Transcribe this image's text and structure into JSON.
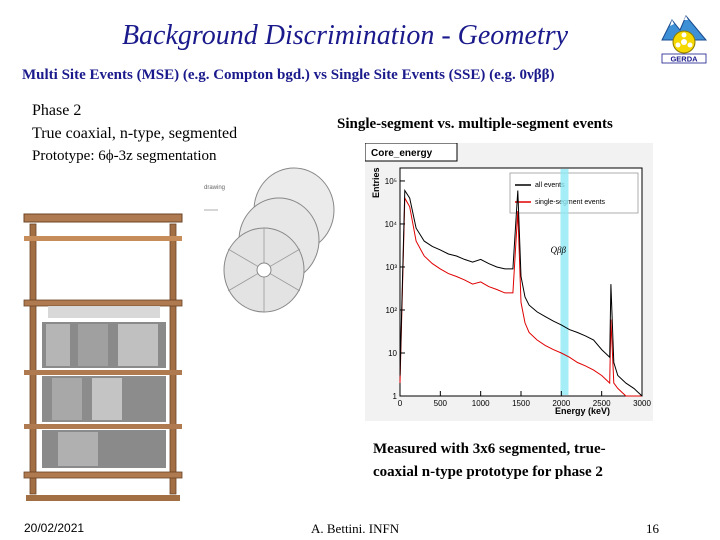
{
  "slide": {
    "title": "Background Discrimination - Geometry",
    "subtitle": "Multi Site Events (MSE) (e.g. Compton bgd.) vs Single Site Events (SSE) (e.g. 0νββ)",
    "left_text": {
      "line1": "Phase 2",
      "line2": "True coaxial, n-type, segmented",
      "line3": "Prototype: 6ϕ-3z segmentation"
    },
    "figure_title": "Single-segment vs. multiple-segment events",
    "caption_line1": "Measured with 3x6 segmented, true-",
    "caption_line2": "coaxial n-type prototype for phase 2",
    "footer_date": "20/02/2021",
    "footer_author": "A. Bettini. INFN",
    "page_number": "16",
    "logo_text": "GERDA",
    "drawing_label": "drawing"
  },
  "chart_data": {
    "type": "line",
    "title": "Core_energy",
    "xlabel": "Energy (keV)",
    "ylabel": "Entries",
    "xlim": [
      0,
      3000
    ],
    "ylog": true,
    "ylim": [
      1,
      200000
    ],
    "x_ticks": [
      "0",
      "500",
      "1000",
      "1500",
      "2000",
      "2500",
      "3000"
    ],
    "y_ticks": [
      "1",
      "10",
      "10²",
      "10³",
      "10⁴",
      "10⁵"
    ],
    "legend": [
      "all events",
      "single-segment events"
    ],
    "legend_position": "top-right",
    "annotation": "Qββ",
    "annotation_x": 2039,
    "series": [
      {
        "name": "all events",
        "color": "#000000",
        "x": [
          0,
          60,
          120,
          200,
          300,
          400,
          500,
          600,
          700,
          800,
          900,
          1000,
          1100,
          1200,
          1300,
          1400,
          1460,
          1500,
          1550,
          1600,
          1700,
          1800,
          1900,
          2000,
          2100,
          2200,
          2300,
          2400,
          2500,
          2600,
          2615,
          2650,
          2700,
          2800,
          2900,
          3000
        ],
        "y": [
          3,
          60000,
          40000,
          8000,
          4000,
          3000,
          2500,
          2000,
          1800,
          1500,
          1300,
          1500,
          1200,
          1000,
          900,
          900,
          60000,
          600,
          200,
          130,
          90,
          70,
          55,
          45,
          35,
          30,
          25,
          20,
          12,
          8,
          400,
          6,
          3,
          2,
          1.5,
          1
        ]
      },
      {
        "name": "single-segment events",
        "color": "#e00000",
        "x": [
          0,
          60,
          120,
          200,
          300,
          400,
          500,
          600,
          700,
          800,
          900,
          1000,
          1100,
          1200,
          1300,
          1400,
          1460,
          1500,
          1550,
          1600,
          1700,
          1800,
          1900,
          2000,
          2100,
          2200,
          2300,
          2400,
          2500,
          2600,
          2615,
          2650,
          2700,
          2800,
          2900,
          3000
        ],
        "y": [
          2,
          40000,
          25000,
          4000,
          1800,
          1200,
          900,
          700,
          600,
          500,
          400,
          450,
          350,
          300,
          250,
          250,
          20000,
          150,
          50,
          30,
          20,
          15,
          12,
          10,
          8,
          6,
          5,
          4,
          3,
          2,
          60,
          2,
          1.5,
          1,
          1,
          1
        ]
      }
    ]
  }
}
